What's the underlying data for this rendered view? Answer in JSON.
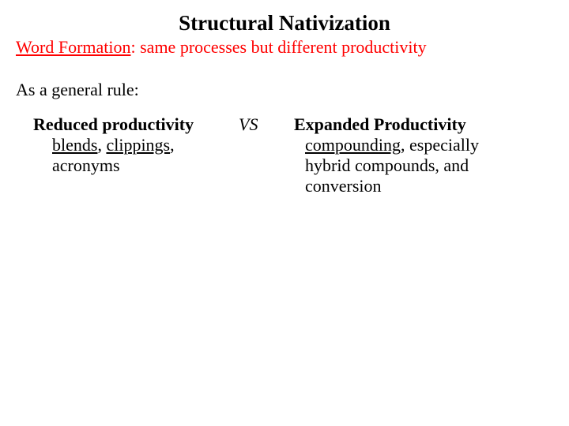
{
  "title": "Structural Nativization",
  "subtitle": {
    "lead": "Word Formation",
    "rest": ": same processes but different productivity"
  },
  "ruleIntro": "As a general rule:",
  "left": {
    "heading": "Reduced productivity",
    "body1a": "blends",
    "body1b": ", ",
    "body1c": "clippings",
    "body1d": ",",
    "body2": "acronyms"
  },
  "mid": "VS",
  "right": {
    "heading": "Expanded Productivity",
    "body1a": "compounding",
    "body1b": ", especially",
    "body2": "hybrid compounds, and",
    "body3": "conversion"
  },
  "colors": {
    "text": "#000000",
    "accent": "#ff0000",
    "background": "#ffffff"
  }
}
